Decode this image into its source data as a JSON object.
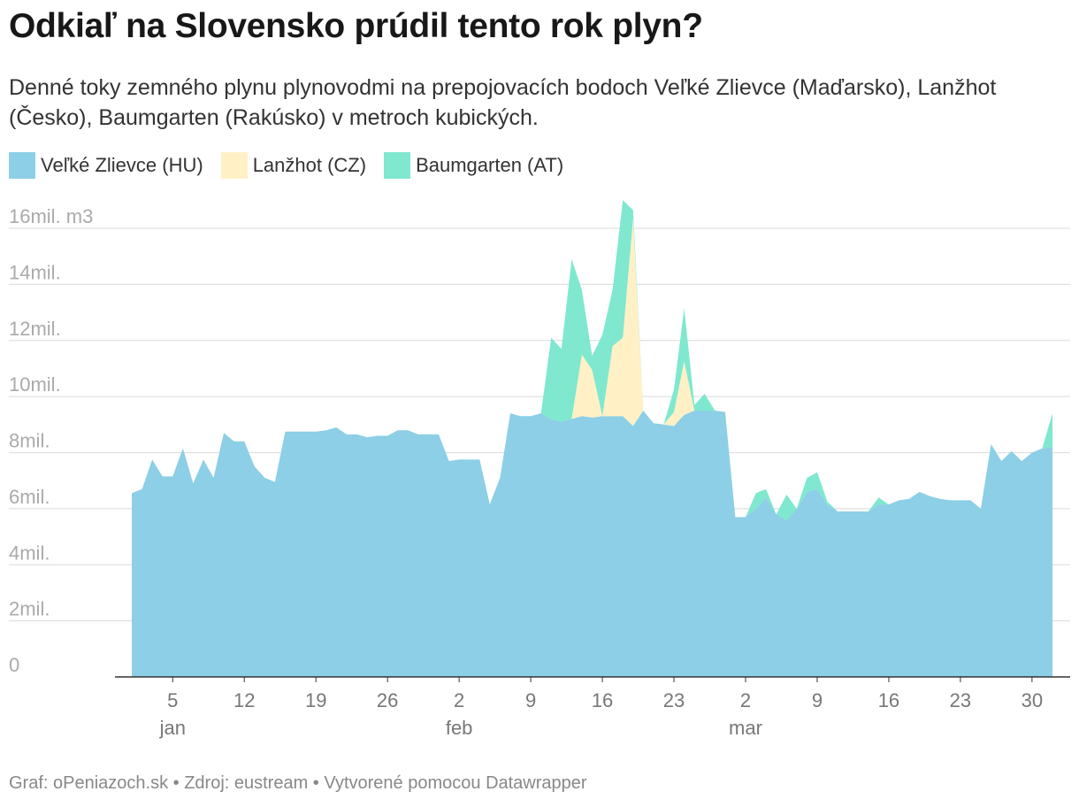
{
  "title": "Odkiaľ na Slovensko prúdil tento rok plyn?",
  "subtitle": "Denné toky zemného plynu plynovodmi na prepojovacích bodoch Veľké Zlievce (Maďarsko), Lanžhot (Česko), Baumgarten (Rakúsko) v metroch kubických.",
  "footer": "Graf: oPeniazoch.sk • Zdroj: eustream • Vytvorené pomocou Datawrapper",
  "chart_data": {
    "type": "area",
    "stacked": true,
    "x_unit": "day",
    "x_start": "2022-01-01",
    "ylim": [
      0,
      16000000
    ],
    "y_ticks": [
      {
        "value": 0,
        "label": "0"
      },
      {
        "value": 2000000,
        "label": "2mil."
      },
      {
        "value": 4000000,
        "label": "4mil."
      },
      {
        "value": 6000000,
        "label": "6mil."
      },
      {
        "value": 8000000,
        "label": "8mil."
      },
      {
        "value": 10000000,
        "label": "10mil."
      },
      {
        "value": 12000000,
        "label": "12mil."
      },
      {
        "value": 14000000,
        "label": "14mil."
      },
      {
        "value": 16000000,
        "label": "16mil. m3"
      }
    ],
    "x_ticks": [
      {
        "day": 5,
        "label": "5",
        "month": "jan"
      },
      {
        "day": 12,
        "label": "12"
      },
      {
        "day": 19,
        "label": "19"
      },
      {
        "day": 26,
        "label": "26"
      },
      {
        "day": 33,
        "label": "2",
        "month": "feb"
      },
      {
        "day": 40,
        "label": "9"
      },
      {
        "day": 47,
        "label": "16"
      },
      {
        "day": 54,
        "label": "23"
      },
      {
        "day": 61,
        "label": "2",
        "month": "mar"
      },
      {
        "day": 68,
        "label": "9"
      },
      {
        "day": 75,
        "label": "16"
      },
      {
        "day": 82,
        "label": "23"
      },
      {
        "day": 89,
        "label": "30"
      }
    ],
    "series": [
      {
        "name": "Veľké Zlievce (HU)",
        "color": "#8ccfe6",
        "values": [
          6.55,
          6.7,
          7.75,
          7.15,
          7.15,
          8.15,
          6.9,
          7.75,
          7.1,
          8.7,
          8.4,
          8.4,
          7.5,
          7.1,
          6.95,
          8.75,
          8.75,
          8.75,
          8.75,
          8.8,
          8.9,
          8.65,
          8.65,
          8.55,
          8.6,
          8.6,
          8.8,
          8.8,
          8.65,
          8.65,
          8.65,
          7.7,
          7.75,
          7.75,
          7.75,
          6.15,
          7.1,
          9.4,
          9.3,
          9.3,
          9.4,
          9.2,
          9.1,
          9.2,
          9.3,
          9.25,
          9.3,
          9.3,
          9.3,
          8.95,
          9.5,
          9.05,
          9.0,
          8.95,
          9.35,
          9.5,
          9.5,
          9.5,
          9.45,
          5.7,
          5.7,
          6.0,
          6.4,
          5.8,
          5.6,
          6.0,
          6.6,
          6.7,
          6.15,
          5.9,
          5.9,
          5.9,
          5.9,
          6.15,
          6.15,
          6.3,
          6.35,
          6.6,
          6.45,
          6.35,
          6.3,
          6.3,
          6.3,
          6.0,
          8.3,
          7.7,
          8.05,
          7.7,
          8.0,
          8.15,
          8.2
        ]
      },
      {
        "name": "Lanžhot (CZ)",
        "color": "#fff0c6",
        "values": [
          0,
          0,
          0,
          0,
          0,
          0,
          0,
          0,
          0,
          0,
          0,
          0,
          0,
          0,
          0,
          0,
          0,
          0,
          0,
          0,
          0,
          0,
          0,
          0,
          0,
          0,
          0,
          0,
          0,
          0,
          0,
          0,
          0,
          0,
          0,
          0,
          0,
          0,
          0,
          0,
          0,
          0,
          0,
          0,
          2.2,
          1.7,
          0,
          2.5,
          2.8,
          7.4,
          0,
          0,
          0,
          0.5,
          1.9,
          0,
          0,
          0,
          0,
          0,
          0,
          0,
          0,
          0,
          0,
          0,
          0,
          0,
          0,
          0,
          0,
          0,
          0,
          0,
          0,
          0,
          0,
          0,
          0,
          0,
          0,
          0,
          0,
          0,
          0,
          0,
          0,
          0,
          0,
          0,
          0
        ]
      },
      {
        "name": "Baumgarten (AT)",
        "color": "#7fe8cf",
        "values": [
          0,
          0,
          0,
          0,
          0,
          0,
          0,
          0,
          0,
          0,
          0,
          0,
          0,
          0,
          0,
          0,
          0,
          0,
          0,
          0,
          0,
          0,
          0,
          0,
          0,
          0,
          0,
          0,
          0,
          0,
          0,
          0,
          0,
          0,
          0,
          0,
          0,
          0,
          0,
          0,
          0,
          2.9,
          2.6,
          5.7,
          2.3,
          0.5,
          2.9,
          2.0,
          4.9,
          0.3,
          0,
          0,
          0,
          0.8,
          1.9,
          0.2,
          0.6,
          0,
          0,
          0,
          0,
          0.55,
          0.3,
          0,
          0.9,
          0,
          0.5,
          0.6,
          0.1,
          0,
          0,
          0,
          0,
          0.25,
          0,
          0,
          0,
          0,
          0,
          0,
          0,
          0,
          0,
          0,
          0,
          0,
          0,
          0,
          0,
          0,
          1.2
        ]
      }
    ],
    "legend_position": "top-left",
    "grid": true
  },
  "colors": {
    "grid": "#e0e0e0",
    "axis_text": "#aaaaaa",
    "x_axis_text": "#777777",
    "baseline": "#333333"
  }
}
